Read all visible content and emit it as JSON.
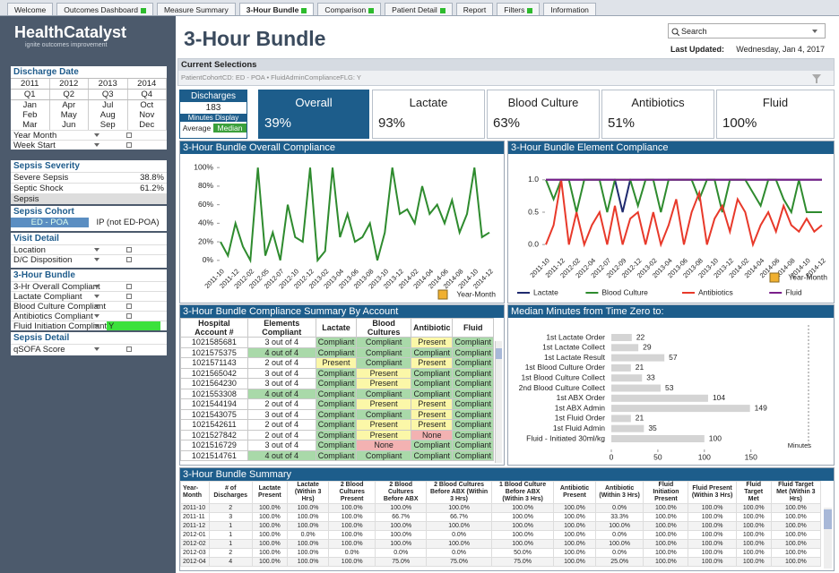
{
  "tabs": {
    "items": [
      {
        "label": "Welcome",
        "flag": false
      },
      {
        "label": "Outcomes Dashboard",
        "flag": true
      },
      {
        "label": "Measure Summary",
        "flag": false
      },
      {
        "label": "3-Hour Bundle",
        "flag": true
      },
      {
        "label": "Comparison",
        "flag": true
      },
      {
        "label": "Patient Detail",
        "flag": true
      },
      {
        "label": "Report",
        "flag": false
      },
      {
        "label": "Filters",
        "flag": true
      },
      {
        "label": "Information",
        "flag": false
      }
    ],
    "active": 3
  },
  "logo": {
    "name": "HealthCatalyst",
    "tagline": "ignite outcomes improvement"
  },
  "header": {
    "title": "3-Hour Bundle",
    "search_placeholder": "Search",
    "last_updated_label": "Last Updated:",
    "last_updated": "Wednesday, Jan 4, 2017"
  },
  "current_selections": {
    "title": "Current Selections",
    "text": "PatientCohortCD: ED - POA • FluidAdminComplianceFLG: Y"
  },
  "filters": {
    "discharge_date": {
      "title": "Discharge Date",
      "years": [
        "2011",
        "2012",
        "2013",
        "2014"
      ],
      "quarters": [
        "Q1",
        "Q2",
        "Q3",
        "Q4"
      ],
      "months": [
        [
          "Jan",
          "Apr",
          "Jul",
          "Oct"
        ],
        [
          "Feb",
          "May",
          "Aug",
          "Nov"
        ],
        [
          "Mar",
          "Jun",
          "Sep",
          "Dec"
        ]
      ],
      "dropdowns": [
        {
          "label": "Year Month"
        },
        {
          "label": "Week Start"
        }
      ]
    },
    "sepsis_severity": {
      "title": "Sepsis Severity",
      "rows": [
        {
          "label": "Severe Sepsis",
          "value": "38.8%"
        },
        {
          "label": "Septic Shock",
          "value": "61.2%"
        },
        {
          "label": "Sepsis"
        }
      ]
    },
    "sepsis_cohort": {
      "title": "Sepsis Cohort",
      "options": [
        "ED - POA",
        "IP  (not ED-POA)"
      ],
      "selected": 0
    },
    "visit_detail": {
      "title": "Visit Detail",
      "dropdowns": [
        {
          "label": "Location"
        },
        {
          "label": "D/C Disposition"
        }
      ]
    },
    "bundle": {
      "title": "3-Hour Bundle",
      "dropdowns": [
        {
          "label": "3-Hr Overall Compliant"
        },
        {
          "label": "Lactate Compliant"
        },
        {
          "label": "Blood Culture Compliant"
        },
        {
          "label": "Antibiotics Compliant"
        },
        {
          "label": "Fluid Initiation Compliant",
          "selection": "Y"
        }
      ]
    },
    "sepsis_detail": {
      "title": "Sepsis Detail",
      "dropdowns": [
        {
          "label": "qSOFA Score"
        }
      ]
    }
  },
  "kpis": {
    "discharges_label": "Discharges",
    "discharges": "183",
    "minutes_display": "Minutes Display",
    "average": "Average",
    "median": "Median",
    "items": [
      {
        "name": "Overall",
        "value": 39,
        "label": "39%"
      },
      {
        "name": "Lactate",
        "value": 93,
        "label": "93%"
      },
      {
        "name": "Blood Culture",
        "value": 63,
        "label": "63%"
      },
      {
        "name": "Antibiotics",
        "value": 51,
        "label": "51%"
      },
      {
        "name": "Fluid",
        "value": 100,
        "label": "100%"
      }
    ]
  },
  "chart_data": [
    {
      "type": "line",
      "title": "3-Hour Bundle Overall Compliance",
      "x_label": "Year-Month",
      "color": "#2e8b2e",
      "grid": false,
      "categories": [
        "2011-10",
        null,
        "2011-12",
        null,
        "2012-02",
        null,
        "2012-05",
        null,
        "2012-07",
        null,
        "2012-10",
        null,
        "2012-12",
        null,
        "2013-02",
        null,
        "2013-04",
        null,
        "2013-06",
        null,
        "2013-08",
        null,
        "2013-10",
        null,
        "2013-12",
        null,
        "2014-02",
        null,
        "2014-04",
        null,
        "2014-06",
        null,
        "2014-08",
        null,
        "2014-10",
        null,
        "2014-12"
      ],
      "values": [
        20,
        5,
        40,
        15,
        0,
        100,
        5,
        30,
        0,
        60,
        25,
        20,
        100,
        0,
        10,
        100,
        25,
        50,
        20,
        25,
        40,
        0,
        30,
        100,
        50,
        55,
        40,
        80,
        50,
        60,
        40,
        65,
        30,
        50,
        100,
        25,
        30
      ],
      "ylim": [
        -5,
        105
      ],
      "yticks": [
        {
          "value": 0,
          "label": "0%"
        },
        {
          "value": 20,
          "label": "20%"
        },
        {
          "value": 40,
          "label": "40%"
        },
        {
          "value": 60,
          "label": "60%"
        },
        {
          "value": 80,
          "label": "80%"
        },
        {
          "value": 100,
          "label": "100%"
        }
      ]
    },
    {
      "type": "line",
      "title": "3-Hour Bundle Element Compliance",
      "x_label": "Year-Month",
      "grid": false,
      "legend": "bottom",
      "categories": [
        "2011-10",
        null,
        "2011-12",
        null,
        "2012-02",
        null,
        "2012-04",
        null,
        "2012-07",
        null,
        "2012-09",
        null,
        "2012-12",
        null,
        "2013-02",
        null,
        "2013-04",
        null,
        "2013-06",
        null,
        "2013-08",
        null,
        "2013-10",
        null,
        "2013-12",
        null,
        "2014-02",
        null,
        "2014-04",
        null,
        "2014-06",
        null,
        "2014-08",
        null,
        "2014-10",
        null,
        "2014-12"
      ],
      "series": [
        {
          "name": "Lactate",
          "color": "#1f2a6e",
          "values": [
            1,
            1,
            1,
            1,
            1,
            1,
            1,
            1,
            1,
            1,
            0.5,
            1,
            1,
            1,
            1,
            1,
            1,
            1,
            1,
            1,
            1,
            1,
            1,
            1,
            1,
            1,
            1,
            1,
            1,
            1,
            1,
            1,
            1,
            1,
            1,
            1,
            1
          ]
        },
        {
          "name": "Blood Culture",
          "color": "#2e8b2e",
          "values": [
            1,
            0.7,
            1,
            1,
            0.5,
            1,
            1,
            1,
            0.5,
            1,
            1,
            1,
            0.6,
            1,
            1,
            0.5,
            1,
            1,
            1,
            1,
            0.7,
            1,
            1,
            0.5,
            1,
            1,
            1,
            0.8,
            0.6,
            1,
            1,
            0.7,
            0.5,
            1,
            0.5,
            0.5,
            0.5
          ]
        },
        {
          "name": "Antibiotics",
          "color": "#e8392a",
          "values": [
            0,
            0.3,
            1,
            0,
            0.5,
            0,
            0.3,
            0.5,
            0,
            0.6,
            0,
            0.4,
            0.5,
            0,
            0.5,
            0,
            0.3,
            0.7,
            0,
            0.5,
            0.8,
            0,
            0.4,
            0.6,
            0.2,
            0.7,
            0.5,
            0,
            0.3,
            0.5,
            0.2,
            0.6,
            0.3,
            0.2,
            0.4,
            0.2,
            0.3
          ]
        },
        {
          "name": "Fluid",
          "color": "#7a1f8a",
          "values": [
            1,
            1,
            1,
            1,
            1,
            1,
            1,
            1,
            1,
            1,
            1,
            1,
            1,
            1,
            1,
            1,
            1,
            1,
            1,
            1,
            1,
            1,
            1,
            1,
            1,
            1,
            1,
            1,
            1,
            1,
            1,
            1,
            1,
            1,
            1,
            1,
            1
          ]
        }
      ],
      "ylim": [
        -0.15,
        1.15
      ],
      "yticks": [
        {
          "value": 0,
          "label": "0.0"
        },
        {
          "value": 0.5,
          "label": "0.5"
        },
        {
          "value": 1,
          "label": "1.0"
        }
      ]
    },
    {
      "type": "bar",
      "orientation": "horizontal",
      "title": "Median Minutes from Time Zero to:",
      "x_label": "Minutes",
      "color": "#d4d4d4",
      "categories": [
        "1st Lactate Order",
        "1st Lactate Collect",
        "1st Lactate Result",
        "1st Blood Culture Order",
        "1st Blood Culture Collect",
        "2nd Blood Culture Collect",
        "1st ABX Order",
        "1st ABX Admin",
        "1st Fluid Order",
        "1st Fluid Admin",
        "Fluid - Initiated 30ml/kg"
      ],
      "values": [
        22,
        29,
        57,
        21,
        33,
        53,
        104,
        149,
        21,
        35,
        100
      ],
      "xlim": [
        0,
        210
      ],
      "xticks": [
        0,
        50,
        100,
        150
      ]
    }
  ],
  "account_table": {
    "title": "3-Hour Bundle Compliance Summary By Account",
    "columns": [
      "Hospital Account #",
      "Elements Compliant",
      "Lactate",
      "Blood Cultures",
      "Antibiotic",
      "Fluid"
    ],
    "rows": [
      [
        "1021585681",
        "3 out of 4",
        "Compliant",
        "Compliant",
        "Present",
        "Compliant"
      ],
      [
        "1021575375",
        "4 out of 4",
        "Compliant",
        "Compliant",
        "Compliant",
        "Compliant"
      ],
      [
        "1021571143",
        "2 out of 4",
        "Present",
        "Compliant",
        "Present",
        "Compliant"
      ],
      [
        "1021565042",
        "3 out of 4",
        "Compliant",
        "Present",
        "Compliant",
        "Compliant"
      ],
      [
        "1021564230",
        "3 out of 4",
        "Compliant",
        "Present",
        "Compliant",
        "Compliant"
      ],
      [
        "1021553308",
        "4 out of 4",
        "Compliant",
        "Compliant",
        "Compliant",
        "Compliant"
      ],
      [
        "1021544194",
        "2 out of 4",
        "Compliant",
        "Present",
        "Present",
        "Compliant"
      ],
      [
        "1021543075",
        "3 out of 4",
        "Compliant",
        "Compliant",
        "Present",
        "Compliant"
      ],
      [
        "1021542611",
        "2 out of 4",
        "Compliant",
        "Present",
        "Present",
        "Compliant"
      ],
      [
        "1021527842",
        "2 out of 4",
        "Compliant",
        "Present",
        "None",
        "Compliant"
      ],
      [
        "1021516729",
        "3 out of 4",
        "Compliant",
        "None",
        "Compliant",
        "Compliant"
      ],
      [
        "1021514761",
        "4 out of 4",
        "Compliant",
        "Compliant",
        "Compliant",
        "Compliant"
      ]
    ]
  },
  "summary_table": {
    "title": "3-Hour Bundle Summary",
    "columns": [
      "Year-Month",
      "# of Discharges",
      "Lactate Present",
      "Lactate (Within 3 Hrs)",
      "2 Blood Cultures Present",
      "2 Blood Cultures Before ABX",
      "2 Blood Cultures Before ABX (Within 3 Hrs)",
      "1 Blood Culture Before ABX (Within 3 Hrs)",
      "Antibiotic Present",
      "Antibiotic (Within 3 Hrs)",
      "Fluid Initiation Present",
      "Fluid Present (Within 3 Hrs)",
      "Fluid Target Met",
      "Fluid Target Met (Within 3 Hrs)"
    ],
    "rows": [
      [
        "2011-10",
        "2",
        "100.0%",
        "100.0%",
        "100.0%",
        "100.0%",
        "100.0%",
        "100.0%",
        "100.0%",
        "0.0%",
        "100.0%",
        "100.0%",
        "100.0%",
        "100.0%"
      ],
      [
        "2011-11",
        "3",
        "100.0%",
        "100.0%",
        "100.0%",
        "66.7%",
        "66.7%",
        "100.0%",
        "100.0%",
        "33.3%",
        "100.0%",
        "100.0%",
        "100.0%",
        "100.0%"
      ],
      [
        "2011-12",
        "1",
        "100.0%",
        "100.0%",
        "100.0%",
        "100.0%",
        "100.0%",
        "100.0%",
        "100.0%",
        "100.0%",
        "100.0%",
        "100.0%",
        "100.0%",
        "100.0%"
      ],
      [
        "2012-01",
        "1",
        "100.0%",
        "0.0%",
        "100.0%",
        "100.0%",
        "0.0%",
        "100.0%",
        "100.0%",
        "0.0%",
        "100.0%",
        "100.0%",
        "100.0%",
        "100.0%"
      ],
      [
        "2012-02",
        "1",
        "100.0%",
        "100.0%",
        "100.0%",
        "100.0%",
        "100.0%",
        "100.0%",
        "100.0%",
        "100.0%",
        "100.0%",
        "100.0%",
        "100.0%",
        "100.0%"
      ],
      [
        "2012-03",
        "2",
        "100.0%",
        "100.0%",
        "0.0%",
        "0.0%",
        "0.0%",
        "50.0%",
        "100.0%",
        "0.0%",
        "100.0%",
        "100.0%",
        "100.0%",
        "100.0%"
      ],
      [
        "2012-04",
        "4",
        "100.0%",
        "100.0%",
        "100.0%",
        "75.0%",
        "75.0%",
        "75.0%",
        "100.0%",
        "25.0%",
        "100.0%",
        "100.0%",
        "100.0%",
        "100.0%"
      ]
    ]
  }
}
